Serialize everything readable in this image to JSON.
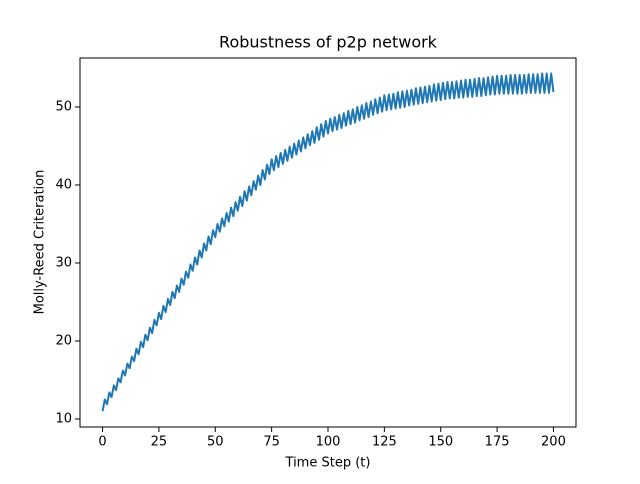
{
  "chart_data": {
    "type": "line",
    "title": "Robustness of p2p network",
    "x_label": "Time Step (t)",
    "y_label": "Molly-Reed Criteration",
    "color": "#1f77b4",
    "x": [
      0,
      1,
      2,
      3,
      4,
      5,
      6,
      7,
      8,
      9,
      10,
      11,
      12,
      13,
      14,
      15,
      16,
      17,
      18,
      19,
      20,
      21,
      22,
      23,
      24,
      25,
      26,
      27,
      28,
      29,
      30,
      31,
      32,
      33,
      34,
      35,
      36,
      37,
      38,
      39,
      40,
      41,
      42,
      43,
      44,
      45,
      46,
      47,
      48,
      49,
      50,
      51,
      52,
      53,
      54,
      55,
      56,
      57,
      58,
      59,
      60,
      61,
      62,
      63,
      64,
      65,
      66,
      67,
      68,
      69,
      70,
      71,
      72,
      73,
      74,
      75,
      76,
      77,
      78,
      79,
      80,
      81,
      82,
      83,
      84,
      85,
      86,
      87,
      88,
      89,
      90,
      91,
      92,
      93,
      94,
      95,
      96,
      97,
      98,
      99,
      100,
      101,
      102,
      103,
      104,
      105,
      106,
      107,
      108,
      109,
      110,
      111,
      112,
      113,
      114,
      115,
      116,
      117,
      118,
      119,
      120,
      121,
      122,
      123,
      124,
      125,
      126,
      127,
      128,
      129,
      130,
      131,
      132,
      133,
      134,
      135,
      136,
      137,
      138,
      139,
      140,
      141,
      142,
      143,
      144,
      145,
      146,
      147,
      148,
      149,
      150,
      151,
      152,
      153,
      154,
      155,
      156,
      157,
      158,
      159,
      160,
      161,
      162,
      163,
      164,
      165,
      166,
      167,
      168,
      169,
      170,
      171,
      172,
      173,
      174,
      175,
      176,
      177,
      178,
      179,
      180,
      181,
      182,
      183,
      184,
      185,
      186,
      187,
      188,
      189,
      190,
      191,
      192,
      193,
      194,
      195,
      196,
      197,
      198,
      199,
      200
    ],
    "values": [
      11.0,
      12.5,
      11.9,
      13.4,
      12.8,
      14.3,
      13.7,
      15.2,
      14.7,
      16.2,
      15.6,
      17.1,
      16.5,
      18.0,
      17.4,
      19.0,
      18.3,
      19.9,
      19.2,
      20.8,
      20.1,
      21.7,
      21.0,
      22.7,
      22.0,
      23.6,
      22.8,
      24.5,
      23.7,
      25.4,
      24.6,
      26.3,
      25.5,
      27.1,
      26.3,
      28.0,
      27.2,
      28.9,
      28.1,
      29.8,
      29.0,
      30.7,
      29.8,
      31.6,
      30.7,
      32.5,
      31.6,
      33.4,
      32.4,
      34.2,
      33.3,
      35.0,
      34.0,
      35.7,
      34.7,
      36.4,
      35.3,
      37.1,
      36.0,
      37.8,
      36.7,
      38.5,
      37.3,
      39.2,
      38.0,
      39.8,
      38.7,
      40.5,
      39.4,
      41.2,
      40.0,
      41.9,
      40.7,
      42.6,
      41.4,
      43.3,
      41.9,
      43.7,
      42.3,
      44.1,
      42.7,
      44.5,
      43.1,
      44.9,
      43.5,
      45.3,
      43.9,
      45.7,
      44.3,
      46.1,
      44.7,
      46.5,
      45.1,
      46.9,
      45.4,
      47.4,
      45.8,
      47.8,
      46.2,
      48.2,
      46.6,
      48.5,
      46.9,
      48.7,
      47.1,
      49.0,
      47.3,
      49.2,
      47.6,
      49.5,
      47.8,
      49.7,
      48.0,
      50.0,
      48.3,
      50.2,
      48.5,
      50.5,
      48.7,
      50.7,
      49.0,
      51.0,
      49.2,
      51.2,
      49.4,
      51.5,
      49.6,
      51.6,
      49.7,
      51.7,
      49.8,
      51.9,
      49.9,
      52.0,
      50.0,
      52.1,
      50.2,
      52.2,
      50.3,
      52.4,
      50.4,
      52.5,
      50.5,
      52.6,
      50.6,
      52.7,
      50.7,
      52.9,
      50.8,
      53.0,
      50.9,
      53.1,
      51.0,
      53.2,
      51.1,
      53.2,
      51.1,
      53.3,
      51.2,
      53.4,
      51.2,
      53.5,
      51.3,
      53.5,
      51.3,
      53.6,
      51.4,
      53.7,
      51.4,
      53.7,
      51.5,
      53.8,
      51.6,
      53.9,
      51.6,
      54.0,
      51.7,
      54.0,
      51.7,
      54.0,
      51.7,
      54.1,
      51.7,
      54.1,
      51.7,
      54.1,
      51.7,
      54.1,
      51.8,
      54.2,
      51.8,
      54.2,
      51.8,
      54.2,
      51.8,
      54.3,
      51.8,
      54.3,
      51.8,
      54.3,
      51.9
    ],
    "xlim": [
      -10,
      210
    ],
    "ylim": [
      8.97,
      56.28
    ],
    "xticks": [
      0,
      25,
      50,
      75,
      100,
      125,
      150,
      175,
      200
    ],
    "yticks": [
      10,
      20,
      30,
      40,
      50
    ]
  }
}
